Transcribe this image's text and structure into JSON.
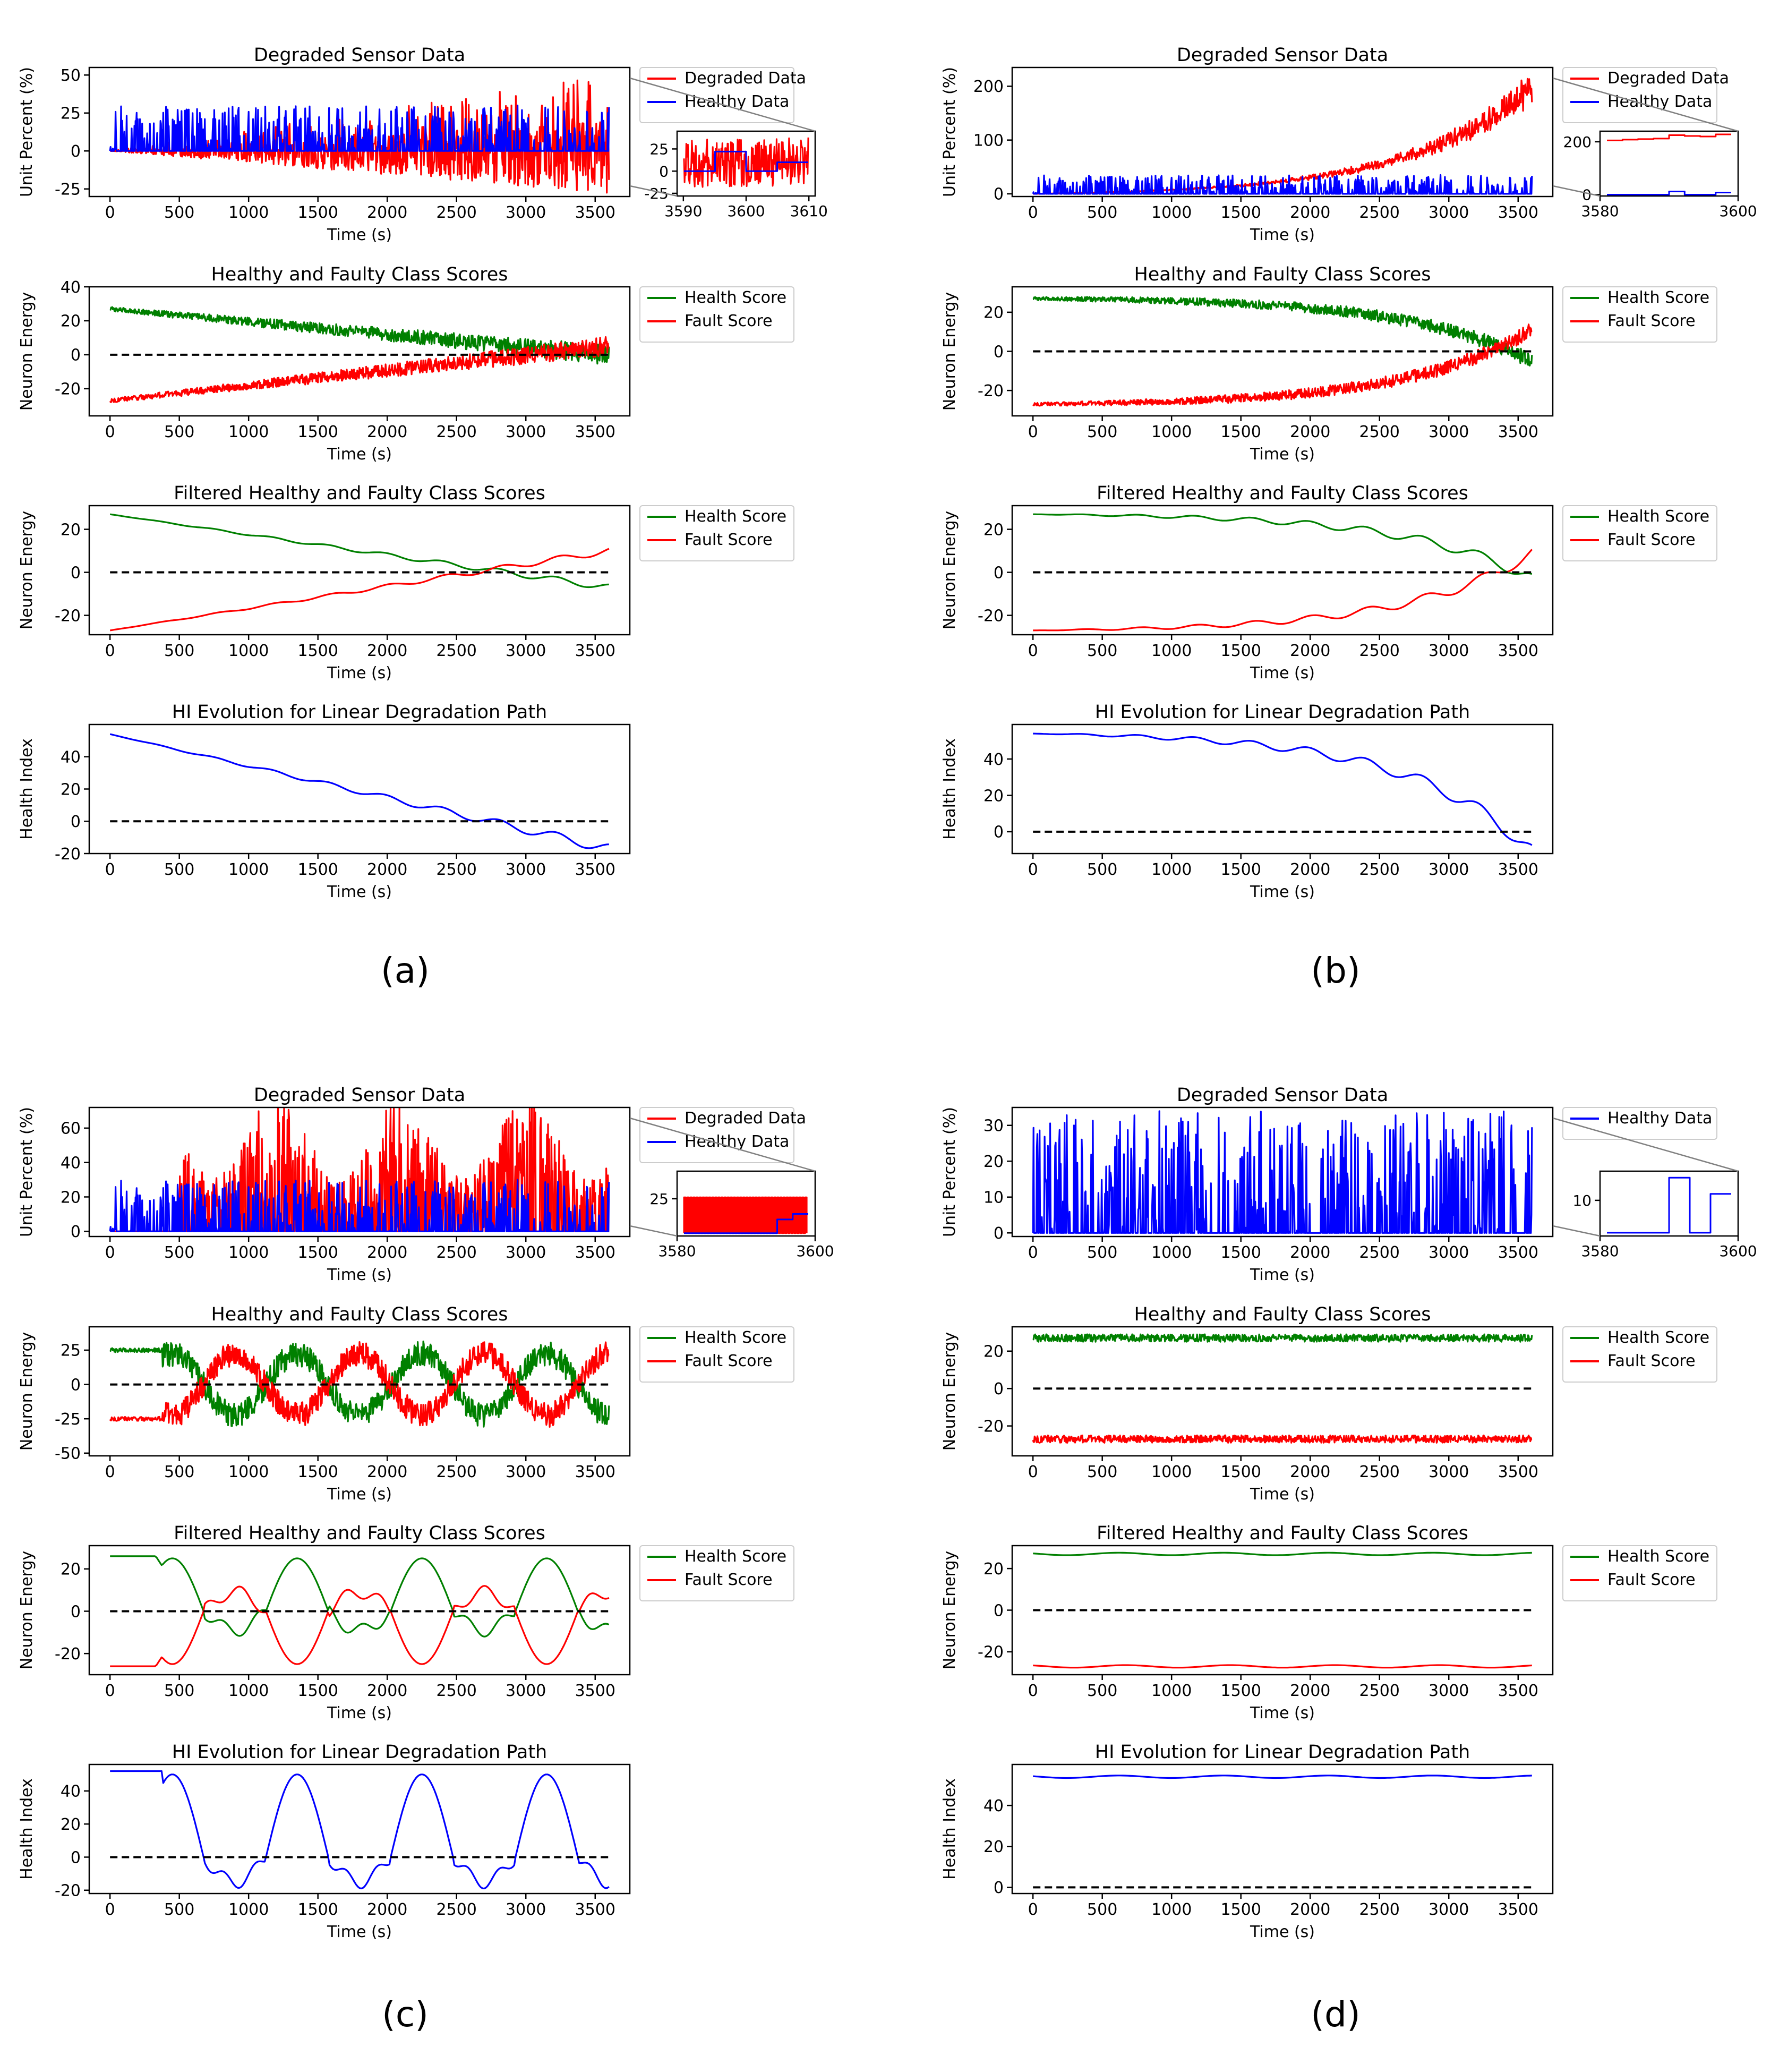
{
  "panels": [
    {
      "label": "(a)"
    },
    {
      "label": "(b)"
    },
    {
      "label": "(c)"
    },
    {
      "label": "(d)"
    }
  ],
  "chart_data": [
    {
      "panel": "a",
      "row": 1,
      "type": "line",
      "title": "Degraded Sensor Data",
      "xlabel": "Time (s)",
      "ylabel": "Unit Percent (%)",
      "xlim": [
        -150,
        3750
      ],
      "ylim": [
        -30,
        55
      ],
      "xticks": [
        0,
        500,
        1000,
        1500,
        2000,
        2500,
        3000,
        3500
      ],
      "yticks": [
        -25,
        0,
        25,
        50
      ],
      "legend": "outside-right",
      "series": [
        {
          "name": "Degraded Data",
          "color": "#ff0000",
          "gen": "noisy_lin_down",
          "params": {
            "lo_end": -28,
            "hi_end": 50
          }
        },
        {
          "name": "Healthy Data",
          "color": "#0000ff",
          "gen": "spikes",
          "params": {
            "base": 0,
            "amp": 30
          }
        }
      ],
      "inset": {
        "xlim": [
          3589,
          3611
        ],
        "ylim": [
          -28,
          45
        ],
        "xticks": [
          3590,
          3600,
          3610
        ],
        "yticks": [
          -25,
          0,
          25
        ],
        "series": [
          {
            "color": "#ff0000",
            "gen": "noise",
            "params": {
              "center": 10,
              "amp": 28
            }
          },
          {
            "color": "#0000ff",
            "gen": "steps",
            "params": {
              "levels": [
                0,
                0,
                22,
                22,
                0,
                0,
                10,
                10
              ]
            }
          }
        ]
      }
    },
    {
      "panel": "a",
      "row": 2,
      "type": "line",
      "title": "Healthy and Faulty Class Scores",
      "xlabel": "Time (s)",
      "ylabel": "Neuron Energy",
      "xlim": [
        -150,
        3750
      ],
      "ylim": [
        -36,
        40
      ],
      "xticks": [
        0,
        500,
        1000,
        1500,
        2000,
        2500,
        3000,
        3500
      ],
      "yticks": [
        -20,
        0,
        20,
        40
      ],
      "legend": "outside-right",
      "series": [
        {
          "name": "Health Score",
          "color": "#008000",
          "gen": "trend_noisy",
          "params": {
            "start": 27,
            "end": 0,
            "shape": "linear",
            "noise": 6
          }
        },
        {
          "name": "Fault Score",
          "color": "#ff0000",
          "gen": "trend_noisy",
          "params": {
            "start": -27,
            "end": 5,
            "shape": "linear",
            "noise": 6
          }
        },
        {
          "name": "",
          "color": "#000000",
          "dashed": true,
          "gen": "zero"
        }
      ]
    },
    {
      "panel": "a",
      "row": 3,
      "type": "line",
      "title": "Filtered Healthy and Faulty Class Scores",
      "xlabel": "Time (s)",
      "ylabel": "Neuron Energy",
      "xlim": [
        -150,
        3750
      ],
      "ylim": [
        -29,
        31
      ],
      "xticks": [
        0,
        500,
        1000,
        1500,
        2000,
        2500,
        3000,
        3500
      ],
      "yticks": [
        -20,
        0,
        20
      ],
      "legend": "outside-right",
      "series": [
        {
          "name": "Health Score",
          "color": "#008000",
          "gen": "trend_smooth",
          "params": {
            "start": 27,
            "end": -7,
            "shape": "linear",
            "wig": 1.5
          }
        },
        {
          "name": "Fault Score",
          "color": "#ff0000",
          "gen": "trend_smooth",
          "params": {
            "start": -27,
            "end": 10,
            "shape": "linear",
            "wig": 1.5
          }
        },
        {
          "name": "",
          "color": "#000000",
          "dashed": true,
          "gen": "zero"
        }
      ]
    },
    {
      "panel": "a",
      "row": 4,
      "type": "line",
      "title": "HI Evolution for Linear Degradation Path",
      "xlabel": "Time (s)",
      "ylabel": "Health Index",
      "xlim": [
        -150,
        3750
      ],
      "ylim": [
        -20,
        60
      ],
      "xticks": [
        0,
        500,
        1000,
        1500,
        2000,
        2500,
        3000,
        3500
      ],
      "yticks": [
        -20,
        0,
        20,
        40
      ],
      "series": [
        {
          "name": "",
          "color": "#0000ff",
          "gen": "trend_smooth",
          "params": {
            "start": 54,
            "end": -17,
            "shape": "linear",
            "wig": 3
          }
        },
        {
          "name": "",
          "color": "#000000",
          "dashed": true,
          "gen": "zero"
        }
      ]
    },
    {
      "panel": "b",
      "row": 1,
      "type": "line",
      "title": "Degraded Sensor Data",
      "xlabel": "Time (s)",
      "ylabel": "Unit Percent (%)",
      "xlim": [
        -150,
        3750
      ],
      "ylim": [
        -5,
        235
      ],
      "xticks": [
        0,
        500,
        1000,
        1500,
        2000,
        2500,
        3000,
        3500
      ],
      "yticks": [
        0,
        100,
        200
      ],
      "legend": "outside-right",
      "series": [
        {
          "name": "Degraded Data",
          "color": "#ff0000",
          "gen": "exp_band",
          "params": {
            "end": 230
          }
        },
        {
          "name": "Healthy Data",
          "color": "#0000ff",
          "gen": "spikes",
          "params": {
            "base": 0,
            "amp": 35
          }
        }
      ],
      "inset": {
        "xlim": [
          3580,
          3600
        ],
        "ylim": [
          -5,
          240
        ],
        "xticks": [
          3580,
          3600
        ],
        "yticks": [
          0,
          200
        ],
        "series": [
          {
            "color": "#ff0000",
            "gen": "steps",
            "params": {
              "levels": [
                205,
                208,
                210,
                212,
                225,
                222,
                220,
                228
              ]
            }
          },
          {
            "color": "#0000ff",
            "gen": "steps",
            "params": {
              "levels": [
                0,
                0,
                0,
                0,
                12,
                0,
                0,
                8
              ]
            }
          }
        ]
      }
    },
    {
      "panel": "b",
      "row": 2,
      "type": "line",
      "title": "Healthy and Faulty Class Scores",
      "xlabel": "Time (s)",
      "ylabel": "Neuron Energy",
      "xlim": [
        -150,
        3750
      ],
      "ylim": [
        -33,
        33
      ],
      "xticks": [
        0,
        500,
        1000,
        1500,
        2000,
        2500,
        3000,
        3500
      ],
      "yticks": [
        -20,
        0,
        20
      ],
      "legend": "outside-right",
      "series": [
        {
          "name": "Health Score",
          "color": "#008000",
          "gen": "trend_noisy",
          "params": {
            "start": 27,
            "end": -5,
            "shape": "exp",
            "noise": 4
          }
        },
        {
          "name": "Fault Score",
          "color": "#ff0000",
          "gen": "trend_noisy",
          "params": {
            "start": -27,
            "end": 11,
            "shape": "exp",
            "noise": 4
          }
        },
        {
          "name": "",
          "color": "#000000",
          "dashed": true,
          "gen": "zero"
        }
      ]
    },
    {
      "panel": "b",
      "row": 3,
      "type": "line",
      "title": "Filtered Healthy and Faulty Class Scores",
      "xlabel": "Time (s)",
      "ylabel": "Neuron Energy",
      "xlim": [
        -150,
        3750
      ],
      "ylim": [
        -29,
        31
      ],
      "xticks": [
        0,
        500,
        1000,
        1500,
        2000,
        2500,
        3000,
        3500
      ],
      "yticks": [
        -20,
        0,
        20
      ],
      "legend": "outside-right",
      "series": [
        {
          "name": "Health Score",
          "color": "#008000",
          "gen": "trend_smooth",
          "params": {
            "start": 27,
            "end": -3,
            "shape": "exp",
            "wig": 2.5
          }
        },
        {
          "name": "Fault Score",
          "color": "#ff0000",
          "gen": "trend_smooth",
          "params": {
            "start": -27,
            "end": 9,
            "shape": "exp",
            "wig": 2.5
          }
        },
        {
          "name": "",
          "color": "#000000",
          "dashed": true,
          "gen": "zero"
        }
      ]
    },
    {
      "panel": "b",
      "row": 4,
      "type": "line",
      "title": "HI Evolution for Linear Degradation Path",
      "xlabel": "Time (s)",
      "ylabel": "Health Index",
      "xlim": [
        -150,
        3750
      ],
      "ylim": [
        -12,
        59
      ],
      "xticks": [
        0,
        500,
        1000,
        1500,
        2000,
        2500,
        3000,
        3500
      ],
      "yticks": [
        0,
        20,
        40
      ],
      "series": [
        {
          "name": "",
          "color": "#0000ff",
          "gen": "trend_smooth",
          "params": {
            "start": 54,
            "end": -11,
            "shape": "exp",
            "wig": 4
          }
        },
        {
          "name": "",
          "color": "#000000",
          "dashed": true,
          "gen": "zero"
        }
      ]
    },
    {
      "panel": "c",
      "row": 1,
      "type": "line",
      "title": "Degraded Sensor Data",
      "xlabel": "Time (s)",
      "ylabel": "Unit Percent (%)",
      "xlim": [
        -150,
        3750
      ],
      "ylim": [
        -3,
        72
      ],
      "xticks": [
        0,
        500,
        1000,
        1500,
        2000,
        2500,
        3000,
        3500
      ],
      "yticks": [
        0,
        20,
        40,
        60
      ],
      "legend": "outside-right",
      "series": [
        {
          "name": "Degraded Data",
          "color": "#ff0000",
          "gen": "cyclic_spikes",
          "params": {
            "amp": 70
          }
        },
        {
          "name": "Healthy Data",
          "color": "#0000ff",
          "gen": "spikes",
          "params": {
            "base": 0,
            "amp": 30
          }
        }
      ],
      "inset": {
        "xlim": [
          3580,
          3600
        ],
        "ylim": [
          -2,
          45
        ],
        "xticks": [
          3580,
          3600
        ],
        "yticks": [
          25
        ],
        "series": [
          {
            "color": "#ff0000",
            "gen": "square",
            "params": {
              "lo": 0,
              "hi": 26
            }
          },
          {
            "color": "#0000ff",
            "gen": "steps",
            "params": {
              "levels": [
                0,
                0,
                0,
                0,
                0,
                0,
                10,
                14
              ]
            }
          }
        ]
      }
    },
    {
      "panel": "c",
      "row": 2,
      "type": "line",
      "title": "Healthy and Faulty Class Scores",
      "xlabel": "Time (s)",
      "ylabel": "Neuron Energy",
      "xlim": [
        -150,
        3750
      ],
      "ylim": [
        -52,
        42
      ],
      "xticks": [
        0,
        500,
        1000,
        1500,
        2000,
        2500,
        3000,
        3500
      ],
      "yticks": [
        -50,
        -25,
        0,
        25
      ],
      "legend": "outside-right",
      "series": [
        {
          "name": "Health Score",
          "color": "#008000",
          "gen": "cyclic_noisy",
          "params": {
            "sign": 1,
            "noise": 10
          }
        },
        {
          "name": "Fault Score",
          "color": "#ff0000",
          "gen": "cyclic_noisy",
          "params": {
            "sign": -1,
            "noise": 10
          }
        },
        {
          "name": "",
          "color": "#000000",
          "dashed": true,
          "gen": "zero"
        }
      ]
    },
    {
      "panel": "c",
      "row": 3,
      "type": "line",
      "title": "Filtered Healthy and Faulty Class Scores",
      "xlabel": "Time (s)",
      "ylabel": "Neuron Energy",
      "xlim": [
        -150,
        3750
      ],
      "ylim": [
        -30,
        31
      ],
      "xticks": [
        0,
        500,
        1000,
        1500,
        2000,
        2500,
        3000,
        3500
      ],
      "yticks": [
        -20,
        0,
        20
      ],
      "legend": "outside-right",
      "series": [
        {
          "name": "Health Score",
          "color": "#008000",
          "gen": "cyclic_smooth",
          "params": {
            "sign": 1
          }
        },
        {
          "name": "Fault Score",
          "color": "#ff0000",
          "gen": "cyclic_smooth",
          "params": {
            "sign": -1
          }
        },
        {
          "name": "",
          "color": "#000000",
          "dashed": true,
          "gen": "zero"
        }
      ]
    },
    {
      "panel": "c",
      "row": 4,
      "type": "line",
      "title": "HI Evolution for Linear Degradation Path",
      "xlabel": "Time (s)",
      "ylabel": "Health Index",
      "xlim": [
        -150,
        3750
      ],
      "ylim": [
        -22,
        56
      ],
      "xticks": [
        0,
        500,
        1000,
        1500,
        2000,
        2500,
        3000,
        3500
      ],
      "yticks": [
        -20,
        0,
        20,
        40
      ],
      "series": [
        {
          "name": "",
          "color": "#0000ff",
          "gen": "cyclic_hi"
        },
        {
          "name": "",
          "color": "#000000",
          "dashed": true,
          "gen": "zero"
        }
      ]
    },
    {
      "panel": "d",
      "row": 1,
      "type": "line",
      "title": "Degraded Sensor Data",
      "xlabel": "Time (s)",
      "ylabel": "Unit Percent (%)",
      "xlim": [
        -150,
        3750
      ],
      "ylim": [
        -1,
        35
      ],
      "xticks": [
        0,
        500,
        1000,
        1500,
        2000,
        2500,
        3000,
        3500
      ],
      "yticks": [
        0,
        10,
        20,
        30
      ],
      "legend": "outside-right",
      "series": [
        {
          "name": "Healthy Data",
          "color": "#0000ff",
          "gen": "spikes",
          "params": {
            "base": 0,
            "amp": 34
          }
        }
      ],
      "inset": {
        "xlim": [
          3580,
          3600
        ],
        "ylim": [
          -1,
          19
        ],
        "xticks": [
          3580,
          3600
        ],
        "yticks": [
          10
        ],
        "series": [
          {
            "color": "#0000ff",
            "gen": "steps",
            "params": {
              "levels": [
                0,
                0,
                0,
                0,
                0,
                0,
                17,
                17,
                0,
                0,
                12,
                12
              ]
            }
          }
        ]
      }
    },
    {
      "panel": "d",
      "row": 2,
      "type": "line",
      "title": "Healthy and Faulty Class Scores",
      "xlabel": "Time (s)",
      "ylabel": "Neuron Energy",
      "xlim": [
        -150,
        3750
      ],
      "ylim": [
        -36,
        33
      ],
      "xticks": [
        0,
        500,
        1000,
        1500,
        2000,
        2500,
        3000,
        3500
      ],
      "yticks": [
        -20,
        0,
        20
      ],
      "legend": "outside-right",
      "series": [
        {
          "name": "Health Score",
          "color": "#008000",
          "gen": "flat_noisy",
          "params": {
            "level": 27,
            "noise": 2
          }
        },
        {
          "name": "Fault Score",
          "color": "#ff0000",
          "gen": "flat_noisy",
          "params": {
            "level": -27,
            "noise": 2
          }
        },
        {
          "name": "",
          "color": "#000000",
          "dashed": true,
          "gen": "zero"
        }
      ]
    },
    {
      "panel": "d",
      "row": 3,
      "type": "line",
      "title": "Filtered Healthy and Faulty Class Scores",
      "xlabel": "Time (s)",
      "ylabel": "Neuron Energy",
      "xlim": [
        -150,
        3750
      ],
      "ylim": [
        -31,
        31
      ],
      "xticks": [
        0,
        500,
        1000,
        1500,
        2000,
        2500,
        3000,
        3500
      ],
      "yticks": [
        -20,
        0,
        20
      ],
      "legend": "outside-right",
      "series": [
        {
          "name": "Health Score",
          "color": "#008000",
          "gen": "flat_smooth",
          "params": {
            "level": 27
          }
        },
        {
          "name": "Fault Score",
          "color": "#ff0000",
          "gen": "flat_smooth",
          "params": {
            "level": -27
          }
        },
        {
          "name": "",
          "color": "#000000",
          "dashed": true,
          "gen": "zero"
        }
      ]
    },
    {
      "panel": "d",
      "row": 4,
      "type": "line",
      "title": "HI Evolution for Linear Degradation Path",
      "xlabel": "Time (s)",
      "ylabel": "Health Index",
      "xlim": [
        -150,
        3750
      ],
      "ylim": [
        -3,
        60
      ],
      "xticks": [
        0,
        500,
        1000,
        1500,
        2000,
        2500,
        3000,
        3500
      ],
      "yticks": [
        0,
        20,
        40
      ],
      "series": [
        {
          "name": "",
          "color": "#0000ff",
          "gen": "flat_smooth",
          "params": {
            "level": 54
          }
        },
        {
          "name": "",
          "color": "#000000",
          "dashed": true,
          "gen": "zero"
        }
      ]
    }
  ]
}
